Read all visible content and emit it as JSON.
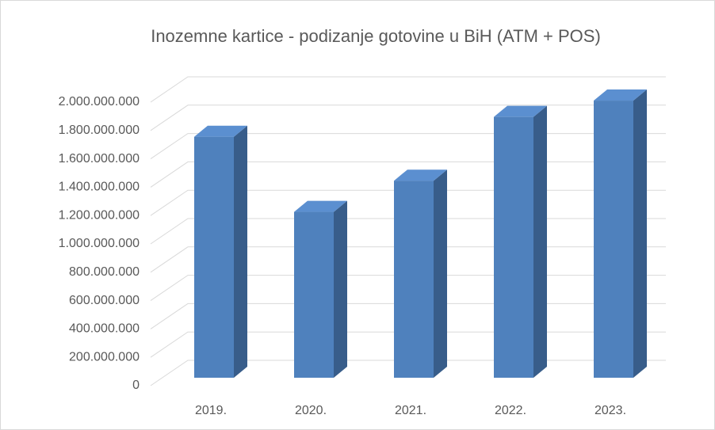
{
  "chart_data": {
    "type": "bar3d",
    "title": "Inozemne kartice - podizanje gotovine u BiH (ATM + POS)",
    "categories": [
      "2019.",
      "2020.",
      "2021.",
      "2022.",
      "2023."
    ],
    "values": [
      1700000000,
      1170000000,
      1390000000,
      1840000000,
      1955000000
    ],
    "color": "#4f81bd",
    "ylim": [
      0,
      2000000000
    ],
    "yticks": [
      0,
      {
        "value": 200000000,
        "label": "200.000.000"
      },
      {
        "value": 400000000,
        "label": "400.000.000"
      },
      {
        "value": 600000000,
        "label": "600.000.000"
      },
      {
        "value": 800000000,
        "label": "800.000.000"
      },
      {
        "value": 1000000000,
        "label": "1.000.000.000"
      },
      {
        "value": 1200000000,
        "label": "1.200.000.000"
      },
      {
        "value": 1400000000,
        "label": "1.400.000.000"
      },
      {
        "value": 1600000000,
        "label": "1.600.000.000"
      },
      {
        "value": 1800000000,
        "label": "1.800.000.000"
      },
      {
        "value": 2000000000,
        "label": "2.000.000.000"
      }
    ],
    "grid": true
  }
}
